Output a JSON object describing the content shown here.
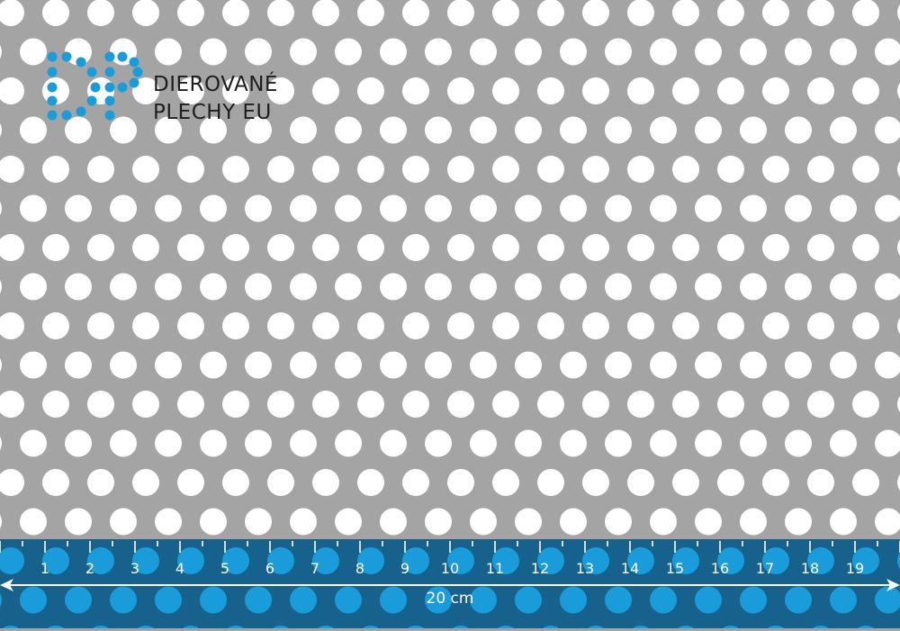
{
  "brand": {
    "line1": "DIEROVANÉ",
    "line2": "PLECHY EU",
    "logo_letters": "DP"
  },
  "ruler": {
    "unit": "cm",
    "labels": [
      "1",
      "2",
      "3",
      "4",
      "5",
      "6",
      "7",
      "8",
      "9",
      "10",
      "11",
      "12",
      "13",
      "14",
      "15",
      "16",
      "17",
      "18",
      "19"
    ],
    "length_label": "20 cm"
  },
  "colors": {
    "sheet": "#a4a4a4",
    "hole": "#ffffff",
    "ruler_band": "#17628c",
    "ruler_hole": "#1a9cdb",
    "logo": "#1a9cdb",
    "text": "#1e1e1e"
  }
}
